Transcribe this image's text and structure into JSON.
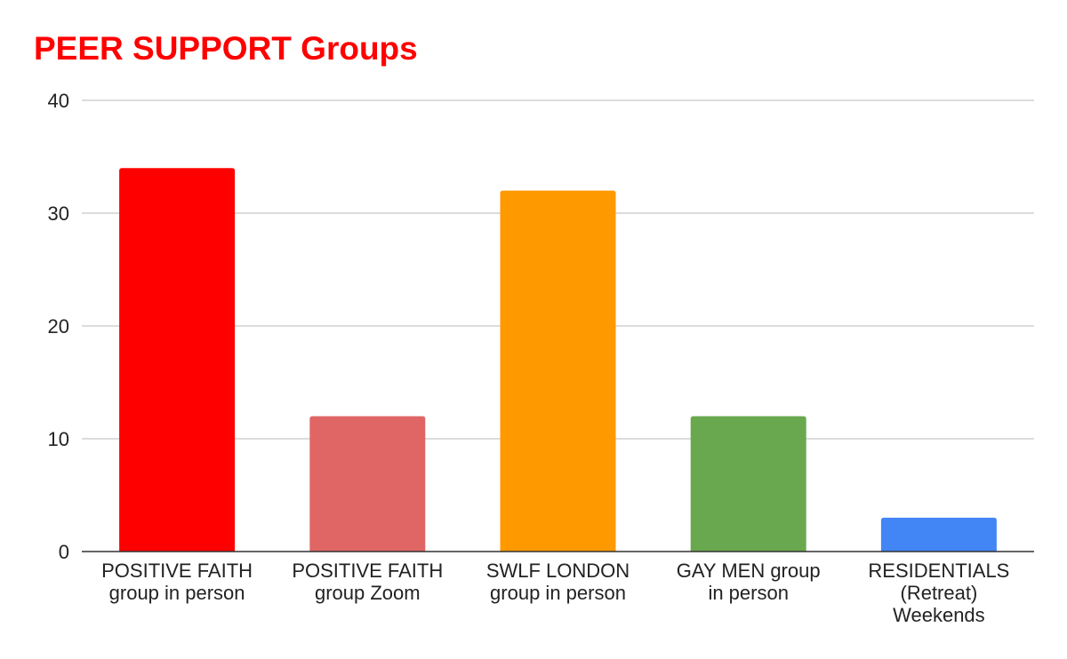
{
  "chart_data": {
    "type": "bar",
    "title": "PEER SUPPORT Groups",
    "title_color": "#ff0000",
    "xlabel": "",
    "ylabel": "",
    "ylim": [
      0,
      40
    ],
    "yticks": [
      "0",
      "10",
      "20",
      "30",
      "40"
    ],
    "grid": true,
    "legend": "none",
    "categories": [
      [
        "POSITIVE FAITH",
        "group in person"
      ],
      [
        "POSITIVE FAITH",
        "group Zoom"
      ],
      [
        "SWLF LONDON",
        "group in person"
      ],
      [
        "GAY MEN group",
        "in person"
      ],
      [
        "RESIDENTIALS",
        "(Retreat)",
        "Weekends"
      ]
    ],
    "values": [
      34,
      12,
      32,
      12,
      3
    ],
    "colors": [
      "#ff0000",
      "#e06666",
      "#ff9900",
      "#6aa84f",
      "#4285f4"
    ]
  }
}
